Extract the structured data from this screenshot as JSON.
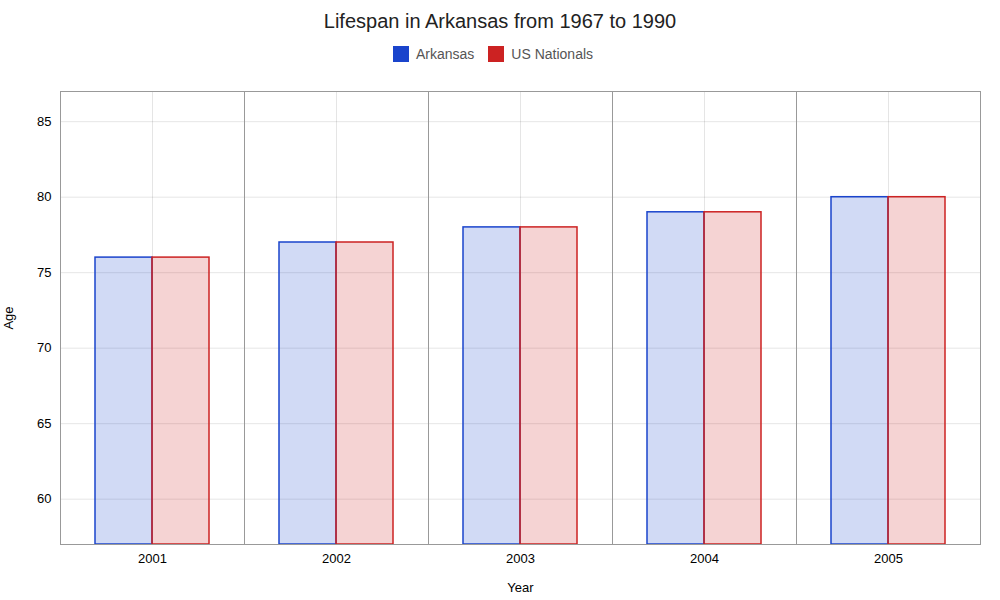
{
  "chart_data": {
    "type": "bar",
    "title": "Lifespan in Arkansas from 1967 to 1990",
    "x_label": "Year",
    "y_label": "Age",
    "categories": [
      "2001",
      "2002",
      "2003",
      "2004",
      "2005"
    ],
    "series": [
      {
        "name": "Arkansas",
        "color": "#1a44cc",
        "values": [
          76,
          77,
          78,
          79,
          80
        ]
      },
      {
        "name": "US Nationals",
        "color": "#cc2222",
        "values": [
          76,
          77,
          78,
          79,
          80
        ]
      }
    ],
    "ylim": [
      57,
      87
    ],
    "yticks": [
      60,
      65,
      70,
      75,
      80,
      85
    ],
    "grid": true,
    "legend": "top"
  }
}
